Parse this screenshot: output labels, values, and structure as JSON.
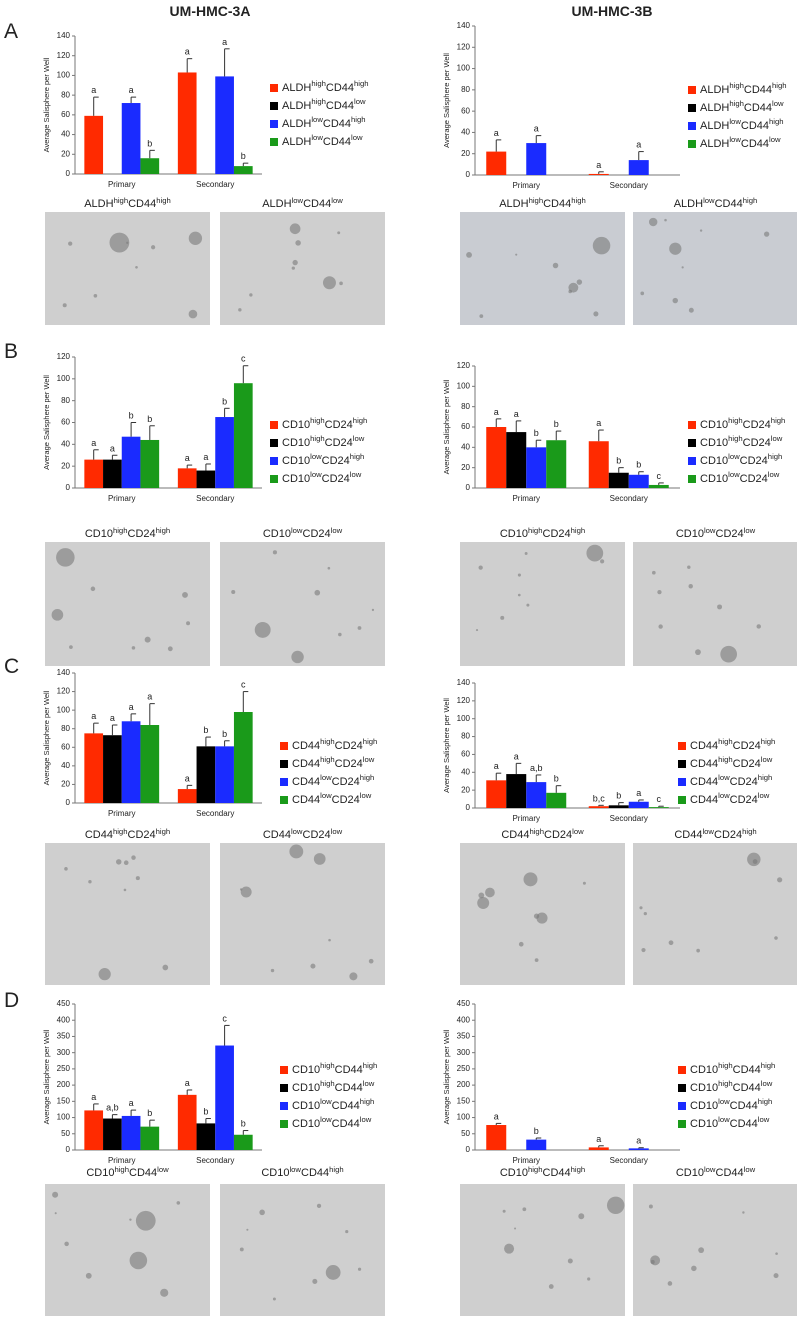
{
  "header": {
    "columns": [
      "UM-HMC-3A",
      "UM-HMC-3B"
    ]
  },
  "panels": [
    {
      "letter": "A",
      "captions_left": [
        "ALDHhighCD44high",
        "ALDHlowCD44low"
      ],
      "captions_right": [
        "ALDHhighCD44high",
        "ALDHlowCD44high"
      ]
    },
    {
      "letter": "B",
      "captions_left": [
        "CD10highCD24high",
        "CD10lowCD24low"
      ],
      "captions_right": [
        "CD10highCD24high",
        "CD10lowCD24low"
      ]
    },
    {
      "letter": "C",
      "captions_left": [
        "CD44highCD24high",
        "CD44lowCD24low"
      ],
      "captions_right": [
        "CD44highCD24low",
        "CD44lowCD24high"
      ]
    },
    {
      "letter": "D",
      "captions_left": [
        "CD10highCD44low",
        "CD10lowCD44high"
      ],
      "captions_right": [
        "CD10highCD44high",
        "CD10lowCD44low"
      ]
    }
  ],
  "chart_data": [
    {
      "type": "bar",
      "ylabel": "Average Salisphere per Well",
      "categories": [
        "Primary",
        "Secondary"
      ],
      "ylim": [
        0,
        140
      ],
      "yticks": [
        0,
        20,
        40,
        60,
        80,
        100,
        120,
        140
      ],
      "series": [
        {
          "name": "ALDHhighCD44high",
          "color": "#ff2a00",
          "values": [
            59,
            103
          ],
          "errors": [
            19,
            14
          ],
          "annotations": [
            "a",
            "a"
          ]
        },
        {
          "name": "ALDHhighCD44low",
          "color": "#000000",
          "values": [
            null,
            null
          ],
          "errors": [
            null,
            null
          ],
          "annotations": [
            null,
            null
          ]
        },
        {
          "name": "ALDHlowCD44high",
          "color": "#1a2bff",
          "values": [
            72,
            99
          ],
          "errors": [
            6,
            28
          ],
          "annotations": [
            "a",
            "a"
          ]
        },
        {
          "name": "ALDHlowCD44low",
          "color": "#1a9a1a",
          "values": [
            16,
            8
          ],
          "errors": [
            8,
            3
          ],
          "annotations": [
            "b",
            "b"
          ]
        }
      ]
    },
    {
      "type": "bar",
      "ylabel": "Average Salisphere per Well",
      "categories": [
        "Primary",
        "Secondary"
      ],
      "ylim": [
        0,
        140
      ],
      "yticks": [
        0,
        20,
        40,
        60,
        80,
        100,
        120,
        140
      ],
      "series": [
        {
          "name": "ALDHhighCD44high",
          "color": "#ff2a00",
          "values": [
            22,
            1
          ],
          "errors": [
            11,
            2
          ],
          "annotations": [
            "a",
            "a"
          ]
        },
        {
          "name": "ALDHhighCD44low",
          "color": "#000000",
          "values": [
            null,
            null
          ],
          "errors": [
            null,
            null
          ],
          "annotations": [
            null,
            null
          ]
        },
        {
          "name": "ALDHlowCD44high",
          "color": "#1a2bff",
          "values": [
            30,
            14
          ],
          "errors": [
            7,
            8
          ],
          "annotations": [
            "a",
            "a"
          ]
        },
        {
          "name": "ALDHlowCD44low",
          "color": "#1a9a1a",
          "values": [
            null,
            null
          ],
          "errors": [
            null,
            null
          ],
          "annotations": [
            null,
            null
          ]
        }
      ]
    },
    {
      "type": "bar",
      "ylabel": "Average Salisphere per Well",
      "categories": [
        "Primary",
        "Secondary"
      ],
      "ylim": [
        0,
        120
      ],
      "yticks": [
        0,
        20,
        40,
        60,
        80,
        100,
        120
      ],
      "series": [
        {
          "name": "CD10highCD24high",
          "color": "#ff2a00",
          "values": [
            26,
            18
          ],
          "errors": [
            9,
            3
          ],
          "annotations": [
            "a",
            "a"
          ]
        },
        {
          "name": "CD10highCD24low",
          "color": "#000000",
          "values": [
            26,
            16
          ],
          "errors": [
            4,
            6
          ],
          "annotations": [
            "a",
            "a"
          ]
        },
        {
          "name": "CD10lowCD24high",
          "color": "#1a2bff",
          "values": [
            47,
            65
          ],
          "errors": [
            13,
            8
          ],
          "annotations": [
            "b",
            "b"
          ]
        },
        {
          "name": "CD10lowCD24low",
          "color": "#1a9a1a",
          "values": [
            44,
            96
          ],
          "errors": [
            13,
            16
          ],
          "annotations": [
            "b",
            "c"
          ]
        }
      ]
    },
    {
      "type": "bar",
      "ylabel": "Average Salisphere per Well",
      "categories": [
        "Primary",
        "Secondary"
      ],
      "ylim": [
        0,
        120
      ],
      "yticks": [
        0,
        20,
        40,
        60,
        80,
        100,
        120
      ],
      "series": [
        {
          "name": "CD10highCD24high",
          "color": "#ff2a00",
          "values": [
            60,
            46
          ],
          "errors": [
            8,
            11
          ],
          "annotations": [
            "a",
            "a"
          ]
        },
        {
          "name": "CD10highCD24low",
          "color": "#000000",
          "values": [
            55,
            15
          ],
          "errors": [
            11,
            5
          ],
          "annotations": [
            "a",
            "b"
          ]
        },
        {
          "name": "CD10lowCD24high",
          "color": "#1a2bff",
          "values": [
            40,
            13
          ],
          "errors": [
            7,
            3
          ],
          "annotations": [
            "b",
            "b"
          ]
        },
        {
          "name": "CD10lowCD24low",
          "color": "#1a9a1a",
          "values": [
            47,
            3
          ],
          "errors": [
            9,
            2
          ],
          "annotations": [
            "b",
            "c"
          ]
        }
      ]
    },
    {
      "type": "bar",
      "ylabel": "Average Salisphere per Well",
      "categories": [
        "Primary",
        "Secondary"
      ],
      "ylim": [
        0,
        140
      ],
      "yticks": [
        0,
        20,
        40,
        60,
        80,
        100,
        120,
        140
      ],
      "series": [
        {
          "name": "CD44highCD24high",
          "color": "#ff2a00",
          "values": [
            75,
            15
          ],
          "errors": [
            11,
            4
          ],
          "annotations": [
            "a",
            "a"
          ]
        },
        {
          "name": "CD44highCD24low",
          "color": "#000000",
          "values": [
            73,
            61
          ],
          "errors": [
            11,
            10
          ],
          "annotations": [
            "a",
            "b"
          ]
        },
        {
          "name": "CD44lowCD24high",
          "color": "#1a2bff",
          "values": [
            88,
            61
          ],
          "errors": [
            8,
            6
          ],
          "annotations": [
            "a",
            "b"
          ]
        },
        {
          "name": "CD44lowCD24low",
          "color": "#1a9a1a",
          "values": [
            84,
            98
          ],
          "errors": [
            23,
            22
          ],
          "annotations": [
            "a",
            "c"
          ]
        }
      ]
    },
    {
      "type": "bar",
      "ylabel": "Average Salisphere per Well",
      "categories": [
        "Primary",
        "Secondary"
      ],
      "ylim": [
        0,
        140
      ],
      "yticks": [
        0,
        20,
        40,
        60,
        80,
        100,
        120,
        140
      ],
      "series": [
        {
          "name": "CD44highCD24high",
          "color": "#ff2a00",
          "values": [
            31,
            2
          ],
          "errors": [
            8,
            1
          ],
          "annotations": [
            "a",
            "b,c"
          ]
        },
        {
          "name": "CD44highCD24low",
          "color": "#000000",
          "values": [
            38,
            3
          ],
          "errors": [
            12,
            3
          ],
          "annotations": [
            "a",
            "b"
          ]
        },
        {
          "name": "CD44lowCD24high",
          "color": "#1a2bff",
          "values": [
            29,
            7
          ],
          "errors": [
            8,
            2
          ],
          "annotations": [
            "a,b",
            "a"
          ]
        },
        {
          "name": "CD44lowCD24low",
          "color": "#1a9a1a",
          "values": [
            17,
            1
          ],
          "errors": [
            8,
            1
          ],
          "annotations": [
            "b",
            "c"
          ]
        }
      ]
    },
    {
      "type": "bar",
      "ylabel": "Average Salisphere per Well",
      "categories": [
        "Primary",
        "Secondary"
      ],
      "ylim": [
        0,
        450
      ],
      "yticks": [
        0,
        50,
        100,
        150,
        200,
        250,
        300,
        350,
        400,
        450
      ],
      "series": [
        {
          "name": "CD10highCD44high",
          "color": "#ff2a00",
          "values": [
            122,
            170
          ],
          "errors": [
            20,
            15
          ],
          "annotations": [
            "a",
            "a"
          ]
        },
        {
          "name": "CD10highCD44low",
          "color": "#000000",
          "values": [
            97,
            82
          ],
          "errors": [
            12,
            15
          ],
          "annotations": [
            "a,b",
            "b"
          ]
        },
        {
          "name": "CD10lowCD44high",
          "color": "#1a2bff",
          "values": [
            105,
            322
          ],
          "errors": [
            18,
            62
          ],
          "annotations": [
            "a",
            "c"
          ]
        },
        {
          "name": "CD10lowCD44low",
          "color": "#1a9a1a",
          "values": [
            72,
            47
          ],
          "errors": [
            20,
            13
          ],
          "annotations": [
            "b",
            "b"
          ]
        }
      ]
    },
    {
      "type": "bar",
      "ylabel": "Average Salisphere per Well",
      "categories": [
        "Primary",
        "Secondary"
      ],
      "ylim": [
        0,
        450
      ],
      "yticks": [
        0,
        50,
        100,
        150,
        200,
        250,
        300,
        350,
        400,
        450
      ],
      "series": [
        {
          "name": "CD10highCD44high",
          "color": "#ff2a00",
          "values": [
            77,
            8
          ],
          "errors": [
            5,
            5
          ],
          "annotations": [
            "a",
            "a"
          ]
        },
        {
          "name": "CD10highCD44low",
          "color": "#000000",
          "values": [
            null,
            null
          ],
          "errors": [
            null,
            null
          ],
          "annotations": [
            null,
            null
          ]
        },
        {
          "name": "CD10lowCD44high",
          "color": "#1a2bff",
          "values": [
            32,
            5
          ],
          "errors": [
            5,
            2
          ],
          "annotations": [
            "b",
            "a"
          ]
        },
        {
          "name": "CD10lowCD44low",
          "color": "#1a9a1a",
          "values": [
            null,
            null
          ],
          "errors": [
            null,
            null
          ],
          "annotations": [
            null,
            null
          ]
        }
      ]
    }
  ]
}
